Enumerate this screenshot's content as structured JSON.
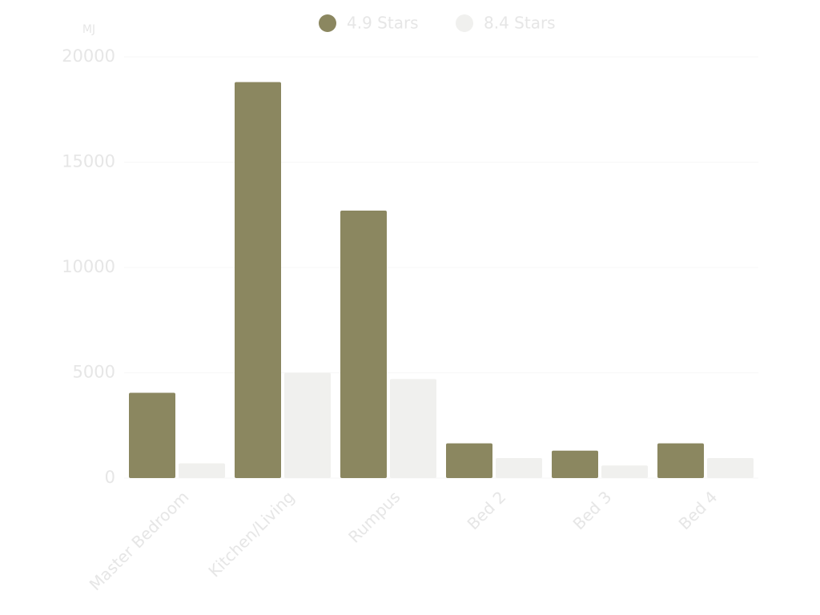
{
  "chart_data": {
    "type": "bar",
    "y_label": "MJ",
    "categories": [
      "Master Bedroom",
      "Kitchen/Living",
      "Rumpus",
      "Bed 2",
      "Bed 3",
      "Bed 4"
    ],
    "series": [
      {
        "name": "4.9 Stars",
        "color": "#8b8760",
        "values": [
          4050,
          18800,
          12700,
          1650,
          1300,
          1650
        ]
      },
      {
        "name": "8.4 Stars",
        "color": "#f0f0ee",
        "values": [
          700,
          5000,
          4700,
          950,
          600,
          950
        ]
      }
    ],
    "ylim": [
      0,
      20000
    ],
    "yticks": [
      0,
      5000,
      10000,
      15000,
      20000
    ],
    "grid": true,
    "legend": "top"
  }
}
